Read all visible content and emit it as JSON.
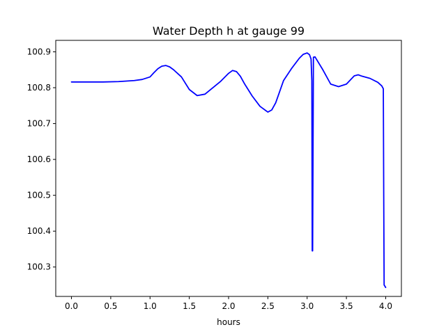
{
  "chart_data": {
    "type": "line",
    "title": "Water Depth h at gauge 99",
    "xlabel": "hours",
    "ylabel": "",
    "xlim": [
      -0.2,
      4.2
    ],
    "ylim": [
      100.218,
      100.932
    ],
    "x_ticks": [
      0.0,
      0.5,
      1.0,
      1.5,
      2.0,
      2.5,
      3.0,
      3.5,
      4.0
    ],
    "x_tick_labels": [
      "0.0",
      "0.5",
      "1.0",
      "1.5",
      "2.0",
      "2.5",
      "3.0",
      "3.5",
      "4.0"
    ],
    "y_ticks": [
      100.3,
      100.4,
      100.5,
      100.6,
      100.7,
      100.8,
      100.9
    ],
    "y_tick_labels": [
      "100.3",
      "100.4",
      "100.5",
      "100.6",
      "100.7",
      "100.8",
      "100.9"
    ],
    "grid": false,
    "series": [
      {
        "color": "#0000ff",
        "x": [
          0.0,
          0.2,
          0.4,
          0.6,
          0.8,
          0.9,
          1.0,
          1.05,
          1.1,
          1.15,
          1.2,
          1.25,
          1.3,
          1.4,
          1.5,
          1.6,
          1.7,
          1.8,
          1.9,
          2.0,
          2.05,
          2.1,
          2.15,
          2.2,
          2.3,
          2.4,
          2.5,
          2.55,
          2.6,
          2.7,
          2.8,
          2.9,
          2.95,
          3.0,
          3.03,
          3.05,
          3.06,
          3.065,
          3.07,
          3.08,
          3.1,
          3.2,
          3.3,
          3.4,
          3.5,
          3.6,
          3.65,
          3.7,
          3.8,
          3.9,
          3.95,
          3.97,
          3.975,
          3.98,
          4.0
        ],
        "y": [
          100.816,
          100.816,
          100.816,
          100.817,
          100.82,
          100.823,
          100.83,
          100.842,
          100.853,
          100.86,
          100.862,
          100.858,
          100.85,
          100.83,
          100.795,
          100.778,
          100.782,
          100.8,
          100.818,
          100.84,
          100.848,
          100.845,
          100.832,
          100.812,
          100.777,
          100.748,
          100.732,
          100.738,
          100.758,
          100.82,
          100.853,
          100.882,
          100.893,
          100.897,
          100.892,
          100.88,
          100.82,
          100.345,
          100.345,
          100.885,
          100.886,
          100.85,
          100.81,
          100.803,
          100.81,
          100.833,
          100.836,
          100.832,
          100.826,
          100.815,
          100.805,
          100.797,
          100.5,
          100.25,
          100.243
        ]
      }
    ]
  }
}
